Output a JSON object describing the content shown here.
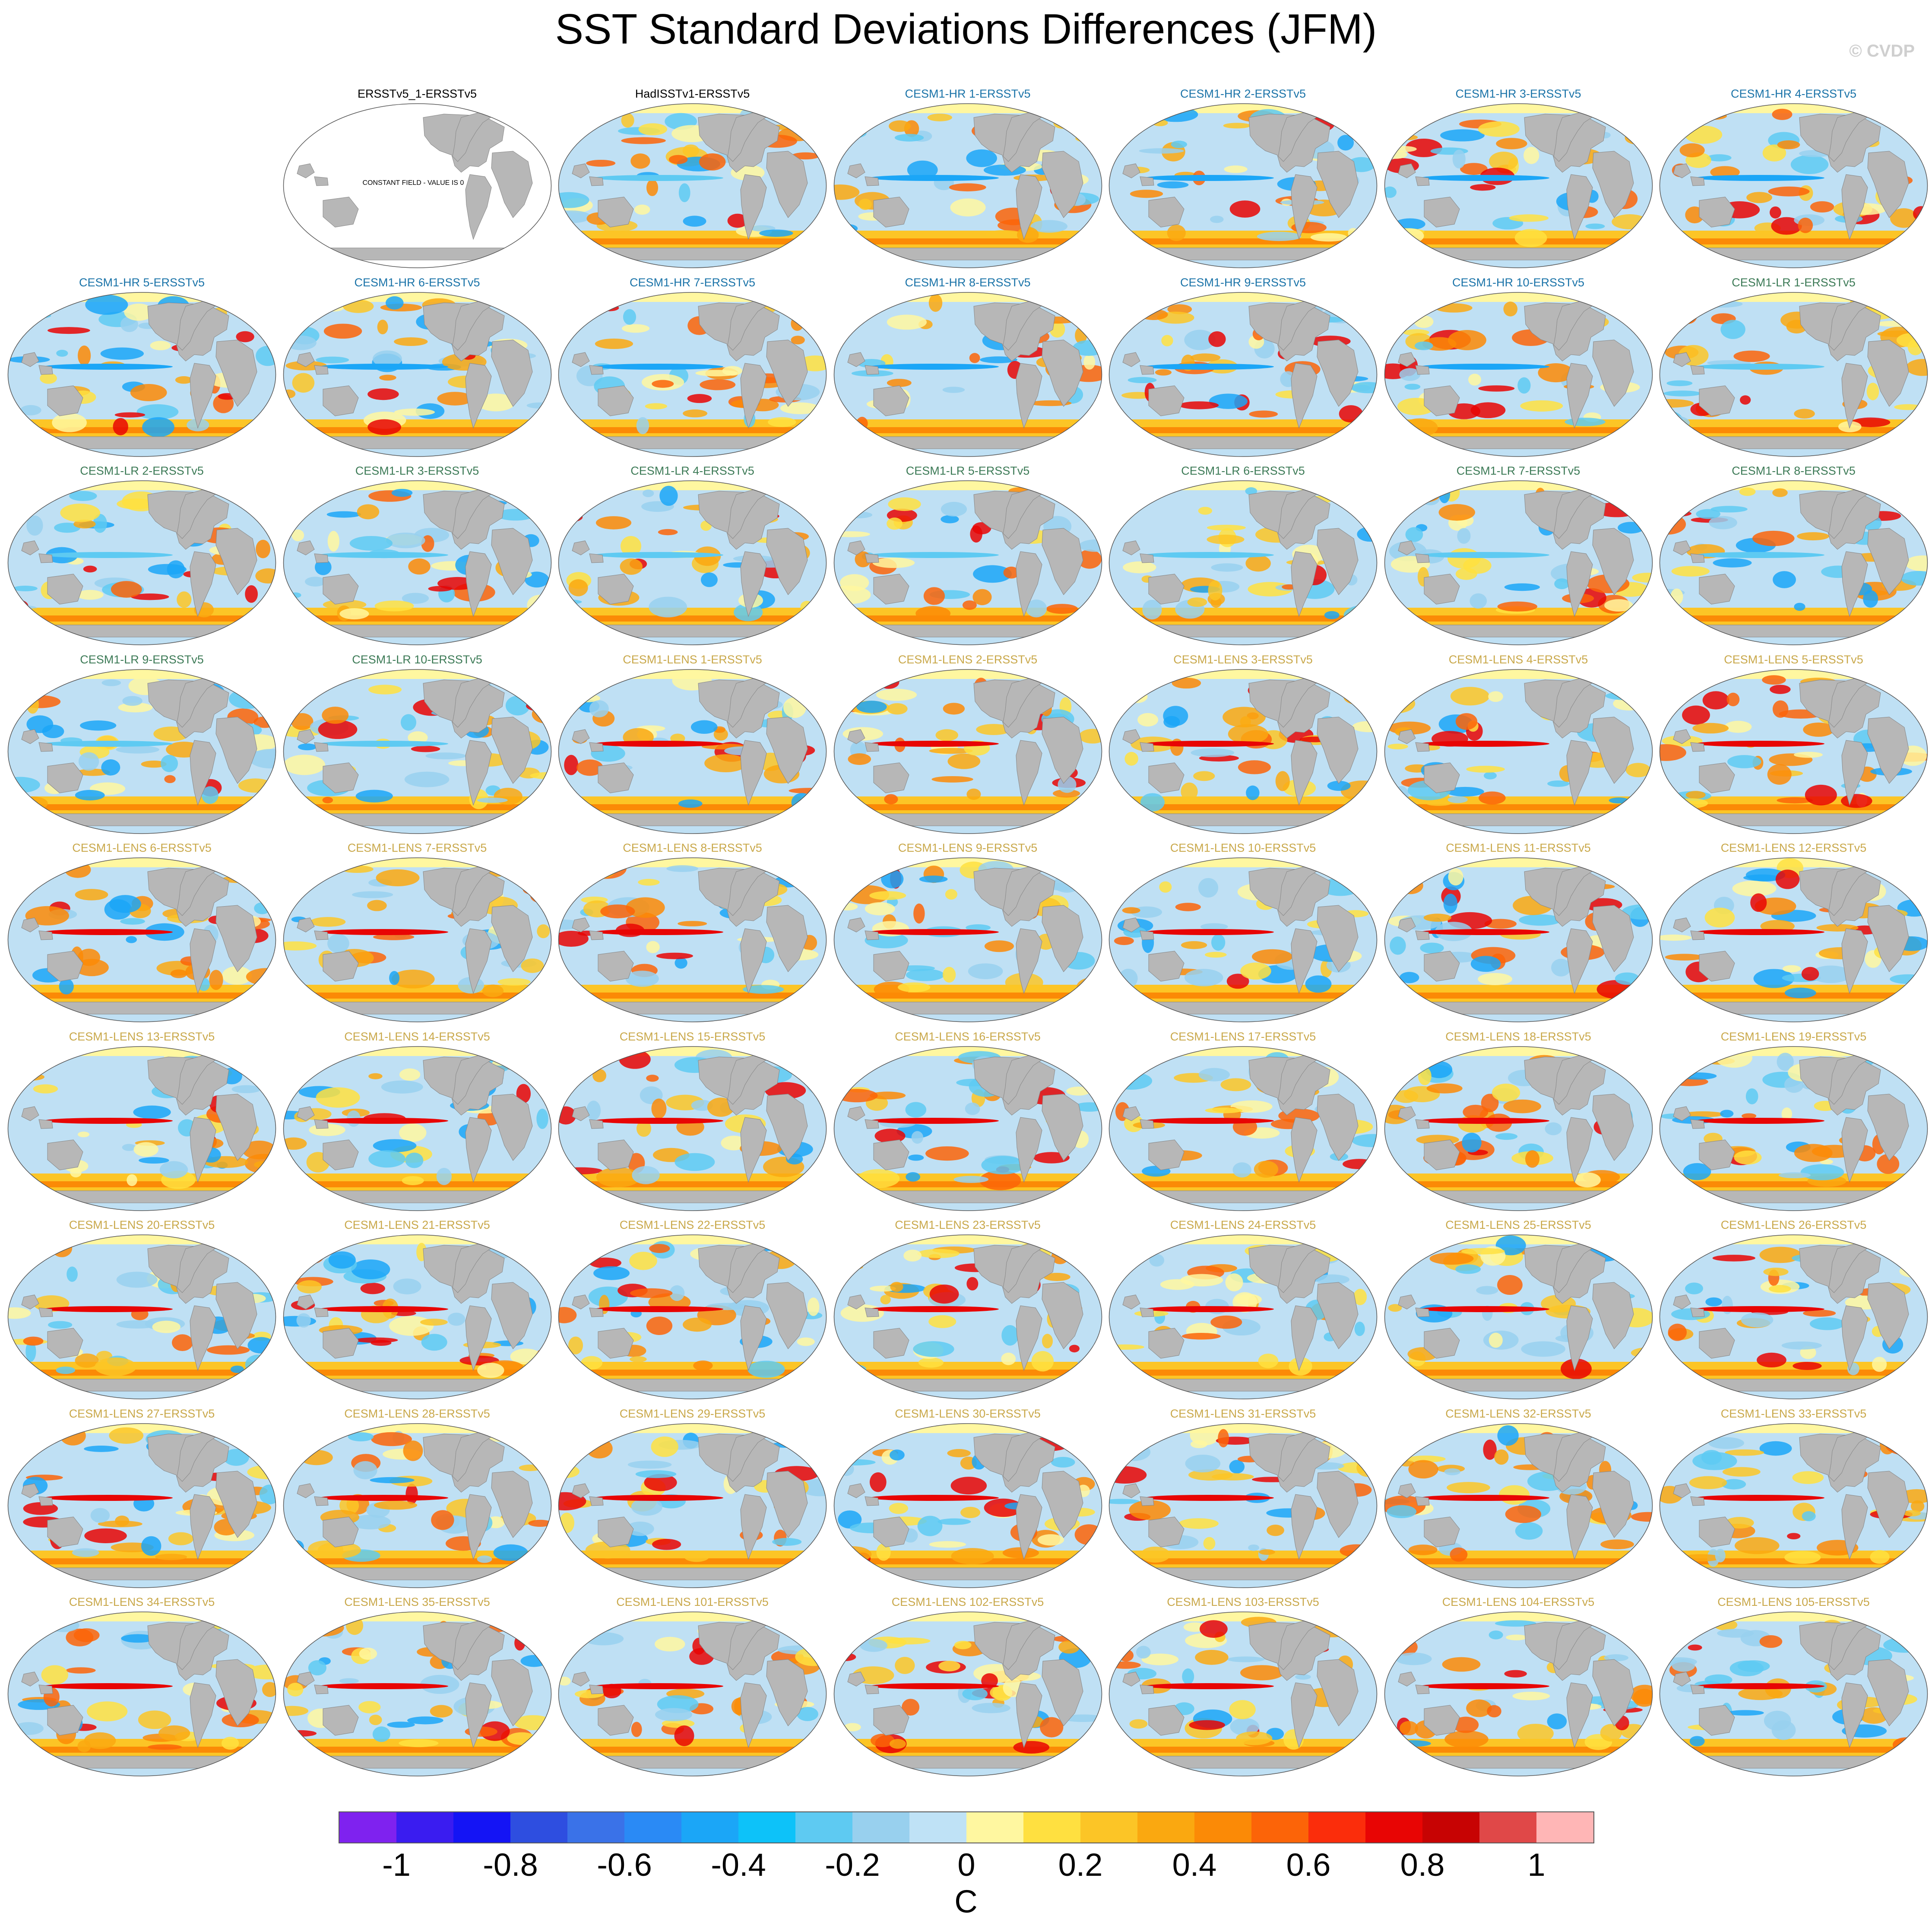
{
  "figure": {
    "title": "SST Standard Deviations Differences (JFM)",
    "watermark": "© CVDP",
    "constant_field_note": "CONSTANT FIELD - VALUE IS 0"
  },
  "colors": {
    "obs": "#000000",
    "hr": "#1a73a8",
    "lr": "#3c7a56",
    "lens": "#c9a84a",
    "land": "#b7b7b7",
    "ocean_base": "#bfe0f4"
  },
  "panels": [
    {
      "label": "ERSSTv5_1-ERSSTv5",
      "group": "obs",
      "constant": true
    },
    {
      "label": "HadISSTv1-ERSSTv5",
      "group": "obs"
    },
    {
      "label": "CESM1-HR 1-ERSSTv5",
      "group": "hr"
    },
    {
      "label": "CESM1-HR 2-ERSSTv5",
      "group": "hr"
    },
    {
      "label": "CESM1-HR 3-ERSSTv5",
      "group": "hr"
    },
    {
      "label": "CESM1-HR 4-ERSSTv5",
      "group": "hr"
    },
    {
      "label": "CESM1-HR 5-ERSSTv5",
      "group": "hr"
    },
    {
      "label": "CESM1-HR 6-ERSSTv5",
      "group": "hr"
    },
    {
      "label": "CESM1-HR 7-ERSSTv5",
      "group": "hr"
    },
    {
      "label": "CESM1-HR 8-ERSSTv5",
      "group": "hr"
    },
    {
      "label": "CESM1-HR 9-ERSSTv5",
      "group": "hr"
    },
    {
      "label": "CESM1-HR 10-ERSSTv5",
      "group": "hr"
    },
    {
      "label": "CESM1-LR 1-ERSSTv5",
      "group": "lr"
    },
    {
      "label": "CESM1-LR 2-ERSSTv5",
      "group": "lr"
    },
    {
      "label": "CESM1-LR 3-ERSSTv5",
      "group": "lr"
    },
    {
      "label": "CESM1-LR 4-ERSSTv5",
      "group": "lr"
    },
    {
      "label": "CESM1-LR 5-ERSSTv5",
      "group": "lr"
    },
    {
      "label": "CESM1-LR 6-ERSSTv5",
      "group": "lr"
    },
    {
      "label": "CESM1-LR 7-ERSSTv5",
      "group": "lr"
    },
    {
      "label": "CESM1-LR 8-ERSSTv5",
      "group": "lr"
    },
    {
      "label": "CESM1-LR 9-ERSSTv5",
      "group": "lr"
    },
    {
      "label": "CESM1-LR 10-ERSSTv5",
      "group": "lr"
    },
    {
      "label": "CESM1-LENS 1-ERSSTv5",
      "group": "lens"
    },
    {
      "label": "CESM1-LENS 2-ERSSTv5",
      "group": "lens"
    },
    {
      "label": "CESM1-LENS 3-ERSSTv5",
      "group": "lens"
    },
    {
      "label": "CESM1-LENS 4-ERSSTv5",
      "group": "lens"
    },
    {
      "label": "CESM1-LENS 5-ERSSTv5",
      "group": "lens"
    },
    {
      "label": "CESM1-LENS 6-ERSSTv5",
      "group": "lens"
    },
    {
      "label": "CESM1-LENS 7-ERSSTv5",
      "group": "lens"
    },
    {
      "label": "CESM1-LENS 8-ERSSTv5",
      "group": "lens"
    },
    {
      "label": "CESM1-LENS 9-ERSSTv5",
      "group": "lens"
    },
    {
      "label": "CESM1-LENS 10-ERSSTv5",
      "group": "lens"
    },
    {
      "label": "CESM1-LENS 11-ERSSTv5",
      "group": "lens"
    },
    {
      "label": "CESM1-LENS 12-ERSSTv5",
      "group": "lens"
    },
    {
      "label": "CESM1-LENS 13-ERSSTv5",
      "group": "lens"
    },
    {
      "label": "CESM1-LENS 14-ERSSTv5",
      "group": "lens"
    },
    {
      "label": "CESM1-LENS 15-ERSSTv5",
      "group": "lens"
    },
    {
      "label": "CESM1-LENS 16-ERSSTv5",
      "group": "lens"
    },
    {
      "label": "CESM1-LENS 17-ERSSTv5",
      "group": "lens"
    },
    {
      "label": "CESM1-LENS 18-ERSSTv5",
      "group": "lens"
    },
    {
      "label": "CESM1-LENS 19-ERSSTv5",
      "group": "lens"
    },
    {
      "label": "CESM1-LENS 20-ERSSTv5",
      "group": "lens"
    },
    {
      "label": "CESM1-LENS 21-ERSSTv5",
      "group": "lens"
    },
    {
      "label": "CESM1-LENS 22-ERSSTv5",
      "group": "lens"
    },
    {
      "label": "CESM1-LENS 23-ERSSTv5",
      "group": "lens"
    },
    {
      "label": "CESM1-LENS 24-ERSSTv5",
      "group": "lens"
    },
    {
      "label": "CESM1-LENS 25-ERSSTv5",
      "group": "lens"
    },
    {
      "label": "CESM1-LENS 26-ERSSTv5",
      "group": "lens"
    },
    {
      "label": "CESM1-LENS 27-ERSSTv5",
      "group": "lens"
    },
    {
      "label": "CESM1-LENS 28-ERSSTv5",
      "group": "lens"
    },
    {
      "label": "CESM1-LENS 29-ERSSTv5",
      "group": "lens"
    },
    {
      "label": "CESM1-LENS 30-ERSSTv5",
      "group": "lens"
    },
    {
      "label": "CESM1-LENS 31-ERSSTv5",
      "group": "lens"
    },
    {
      "label": "CESM1-LENS 32-ERSSTv5",
      "group": "lens"
    },
    {
      "label": "CESM1-LENS 33-ERSSTv5",
      "group": "lens"
    },
    {
      "label": "CESM1-LENS 34-ERSSTv5",
      "group": "lens"
    },
    {
      "label": "CESM1-LENS 35-ERSSTv5",
      "group": "lens"
    },
    {
      "label": "CESM1-LENS 101-ERSSTv5",
      "group": "lens"
    },
    {
      "label": "CESM1-LENS 102-ERSSTv5",
      "group": "lens"
    },
    {
      "label": "CESM1-LENS 103-ERSSTv5",
      "group": "lens"
    },
    {
      "label": "CESM1-LENS 104-ERSSTv5",
      "group": "lens"
    },
    {
      "label": "CESM1-LENS 105-ERSSTv5",
      "group": "lens"
    }
  ],
  "colorbar": {
    "colors": [
      "#7f22ef",
      "#3a1cf0",
      "#1414f5",
      "#2e4ee0",
      "#3a72e8",
      "#2a8af5",
      "#1ba6f7",
      "#0dc2f9",
      "#5ecaf2",
      "#98d0ee",
      "#bfe2f6",
      "#fff7a0",
      "#ffe040",
      "#fcc526",
      "#faa810",
      "#fb8a06",
      "#fc6408",
      "#fb2d0b",
      "#e80504",
      "#c70303",
      "#e04848",
      "#ffb6b6"
    ],
    "tick_labels": [
      "-1",
      "-0.8",
      "-0.6",
      "-0.4",
      "-0.2",
      "0",
      "0.2",
      "0.4",
      "0.6",
      "0.8",
      "1"
    ],
    "unit": "C"
  }
}
